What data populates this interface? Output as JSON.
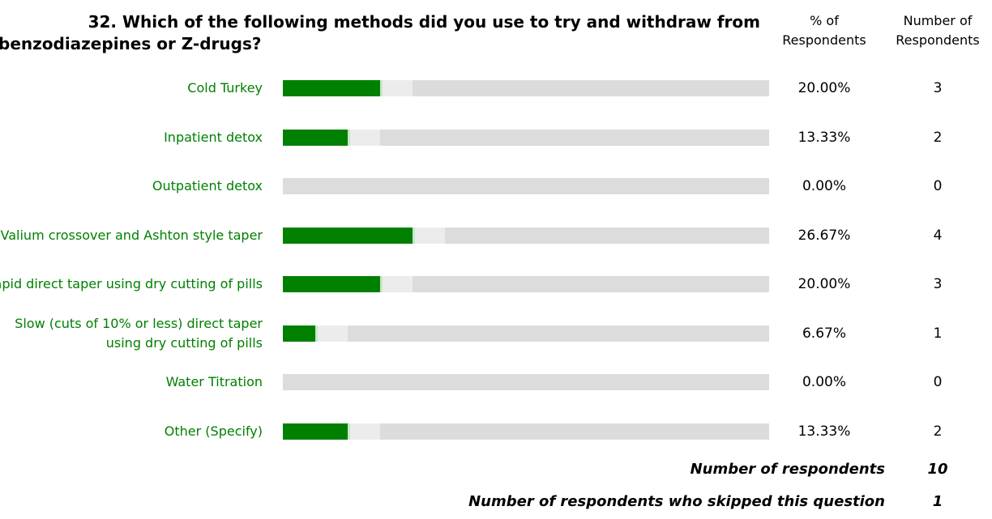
{
  "question": {
    "line1": "32. Which of the following methods did you use to try and withdraw from",
    "line2": "benzodiazepines or Z-drugs?"
  },
  "columns": {
    "pct_line1": "% of",
    "pct_line2": "Respondents",
    "num_line1": "Number of",
    "num_line2": "Respondents"
  },
  "colors": {
    "bar": "#008000",
    "track": "#ececec",
    "label": "#008000"
  },
  "chart_data": {
    "type": "bar",
    "orientation": "horizontal",
    "categories": [
      "Cold Turkey",
      "Inpatient detox",
      "Outpatient detox",
      "Valium crossover and Ashton style taper",
      "Rapid direct taper using dry cutting of pills",
      "Slow (cuts of 10% or less) direct taper using dry cutting of pills",
      "Water Titration",
      "Other (Specify)"
    ],
    "values": [
      20.0,
      13.33,
      0.0,
      26.67,
      20.0,
      6.67,
      0.0,
      13.33
    ],
    "counts": [
      3,
      2,
      0,
      4,
      3,
      1,
      0,
      2
    ],
    "percent_labels": [
      "20.00%",
      "13.33%",
      "0.00%",
      "26.67%",
      "20.00%",
      "6.67%",
      "0.00%",
      "13.33%"
    ],
    "xlim": [
      0,
      100
    ]
  },
  "summary": {
    "respondents_label": "Number of respondents",
    "respondents_value": "10",
    "skipped_label": "Number of respondents who skipped this question",
    "skipped_value": "1"
  }
}
